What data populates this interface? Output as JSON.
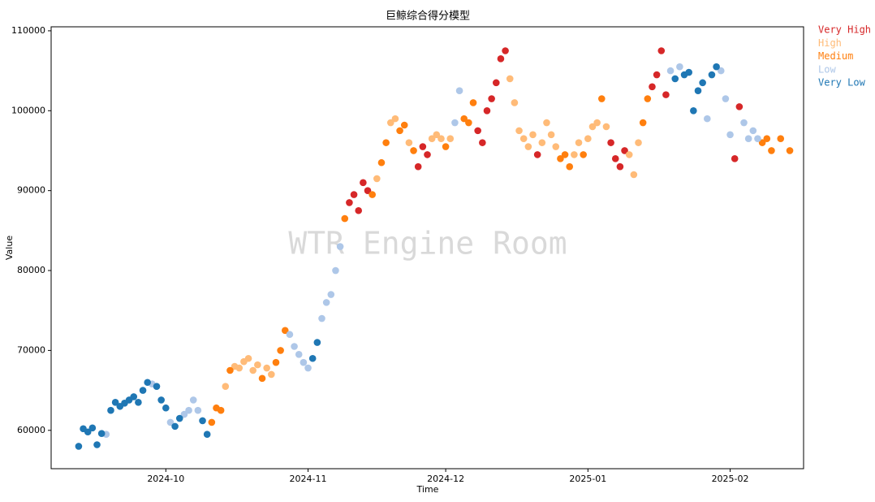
{
  "chart_data": {
    "type": "scatter",
    "title": "巨鲸综合得分模型",
    "x_label": "Time",
    "y_label": "Value",
    "watermark": "WTR Engine Room",
    "xlim": [
      19972,
      20136
    ],
    "ylim": [
      55200,
      110500
    ],
    "xticks": [
      {
        "value": 19997,
        "label": "2024-10"
      },
      {
        "value": 20028,
        "label": "2024-11"
      },
      {
        "value": 20058,
        "label": "2024-12"
      },
      {
        "value": 20089,
        "label": "2025-01"
      },
      {
        "value": 20120,
        "label": "2025-02"
      }
    ],
    "yticks": [
      60000,
      70000,
      80000,
      90000,
      100000,
      110000
    ],
    "grid": false,
    "legend": "outside-right",
    "series": [
      {
        "name": "Very High",
        "color": "#d62728",
        "x": [
          20037,
          20038,
          20039,
          20040,
          20041,
          20052,
          20053,
          20054,
          20065,
          20066,
          20067,
          20068,
          20069,
          20070,
          20071,
          20078,
          20094,
          20095,
          20096,
          20097,
          20103,
          20104,
          20105,
          20106,
          20121,
          20122
        ],
        "values": [
          88500,
          89500,
          87500,
          91000,
          90000,
          93000,
          95500,
          94500,
          97500,
          96000,
          100000,
          101500,
          103500,
          106500,
          107500,
          94500,
          96000,
          94000,
          93000,
          95000,
          103000,
          104500,
          107500,
          102000,
          94000,
          100500
        ]
      },
      {
        "name": "High",
        "color": "#ffbb78",
        "x": [
          20010,
          20012,
          20013,
          20014,
          20015,
          20016,
          20017,
          20019,
          20020,
          20043,
          20046,
          20047,
          20050,
          20055,
          20056,
          20057,
          20059,
          20072,
          20073,
          20074,
          20075,
          20076,
          20077,
          20079,
          20080,
          20081,
          20082,
          20086,
          20087,
          20089,
          20090,
          20091,
          20093,
          20098,
          20099,
          20100
        ],
        "values": [
          65500,
          68000,
          67800,
          68600,
          69000,
          67500,
          68200,
          67800,
          67000,
          91500,
          98500,
          99000,
          96000,
          96500,
          97000,
          96500,
          96500,
          104000,
          101000,
          97500,
          96500,
          95500,
          97000,
          96000,
          98500,
          97000,
          95500,
          94500,
          96000,
          96500,
          98000,
          98500,
          98000,
          94500,
          92000,
          96000
        ]
      },
      {
        "name": "Medium",
        "color": "#ff7f0e",
        "x": [
          20007,
          20008,
          20009,
          20011,
          20018,
          20021,
          20022,
          20023,
          20036,
          20042,
          20044,
          20045,
          20048,
          20049,
          20051,
          20058,
          20062,
          20063,
          20064,
          20083,
          20084,
          20085,
          20088,
          20092,
          20101,
          20102,
          20127,
          20128,
          20129,
          20131,
          20133
        ],
        "values": [
          61000,
          62800,
          62500,
          67500,
          66500,
          68500,
          70000,
          72500,
          86500,
          89500,
          93500,
          96000,
          97500,
          98200,
          95000,
          95500,
          99000,
          98500,
          101000,
          94000,
          94500,
          93000,
          94500,
          101500,
          98500,
          101500,
          96000,
          96500,
          95000,
          96500,
          95000
        ]
      },
      {
        "name": "Low",
        "color": "#aec7e8",
        "x": [
          19984,
          19994,
          19998,
          20001,
          20002,
          20003,
          20004,
          20024,
          20025,
          20026,
          20027,
          20028,
          20031,
          20032,
          20033,
          20034,
          20035,
          20060,
          20061,
          20107,
          20109,
          20115,
          20118,
          20119,
          20120,
          20123,
          20124,
          20125,
          20126
        ],
        "values": [
          59500,
          65800,
          61000,
          62000,
          62500,
          63800,
          62500,
          72000,
          70500,
          69500,
          68500,
          67800,
          74000,
          76000,
          77000,
          80000,
          83000,
          98500,
          102500,
          105000,
          105500,
          99000,
          105000,
          101500,
          97000,
          98500,
          96500,
          97500,
          96500
        ]
      },
      {
        "name": "Very Low",
        "color": "#1f77b4",
        "x": [
          19978,
          19979,
          19980,
          19981,
          19982,
          19983,
          19985,
          19986,
          19987,
          19988,
          19989,
          19990,
          19991,
          19992,
          19993,
          19995,
          19996,
          19997,
          19999,
          20000,
          20005,
          20006,
          20029,
          20030,
          20108,
          20110,
          20111,
          20112,
          20113,
          20114,
          20116,
          20117
        ],
        "values": [
          58000,
          60200,
          59800,
          60300,
          58200,
          59600,
          62500,
          63500,
          63000,
          63400,
          63800,
          64200,
          63500,
          65000,
          66000,
          65500,
          63800,
          62800,
          60500,
          61500,
          61200,
          59500,
          69000,
          71000,
          104000,
          104500,
          104800,
          100000,
          102500,
          103500,
          104500,
          105500
        ]
      }
    ]
  }
}
